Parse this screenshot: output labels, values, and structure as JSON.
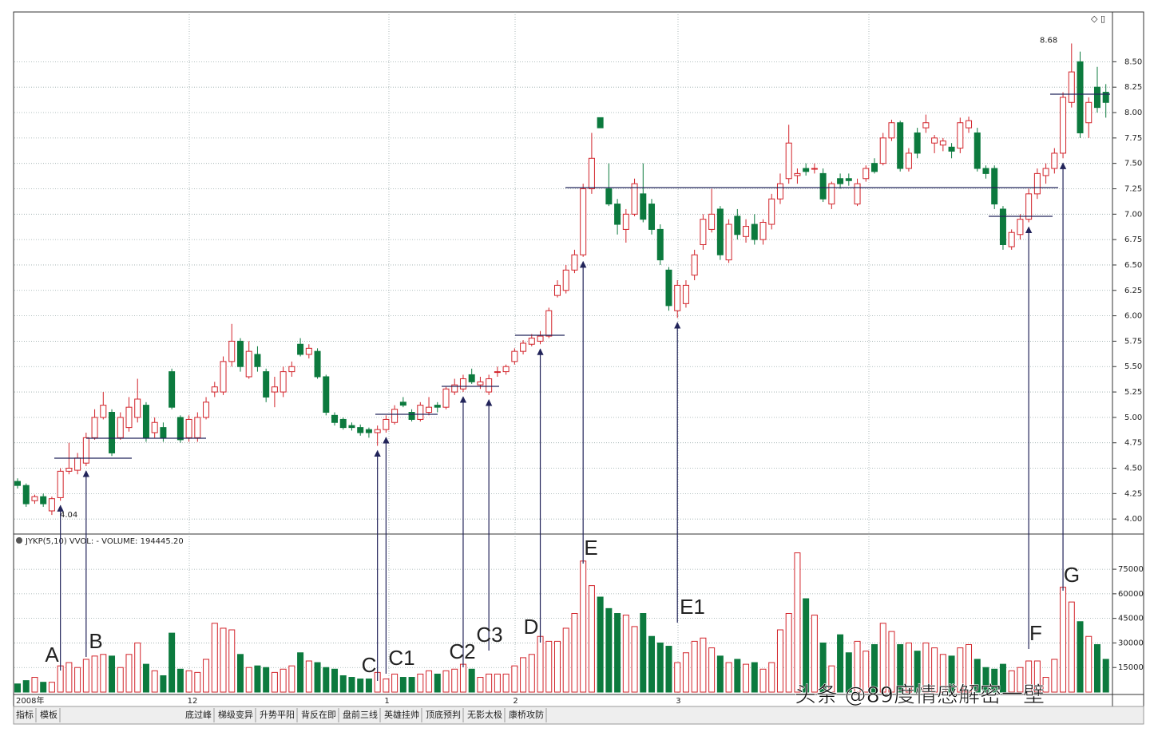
{
  "chart_data": {
    "type": "candlestick",
    "indicator_header": "JYKP(5,10) VVOL: -  VOLUME: 194445.20",
    "x_labels": [
      "2008年",
      "12",
      "1",
      "2",
      "3"
    ],
    "annotations": [
      "A",
      "B",
      "C",
      "C1",
      "C2",
      "C3",
      "D",
      "E",
      "E1",
      "F",
      "G"
    ],
    "up_color": "#d2232a",
    "down_color": "#0c7a3e",
    "ylim": [
      3.86,
      8.99
    ],
    "yticks": [
      {
        "value": 4,
        "label": "4.00"
      },
      4.25,
      {
        "value": 4.5,
        "label": "4.50"
      },
      4.75,
      {
        "value": 5,
        "label": "5.00"
      },
      5.25,
      {
        "value": 5.5,
        "label": "5.50"
      },
      5.75,
      {
        "value": 6,
        "label": "6.00"
      },
      6.25,
      {
        "value": 6.5,
        "label": "6.50"
      },
      6.75,
      {
        "value": 7,
        "label": "7.00"
      },
      7.25,
      {
        "value": 7.5,
        "label": "7.50"
      },
      7.75,
      {
        "value": 8,
        "label": "8.00"
      },
      8.25,
      {
        "value": 8.5,
        "label": "8.50"
      }
    ],
    "y2lim": [
      0,
      96000
    ],
    "y2ticks": [
      15000,
      30000,
      45000,
      60000,
      75000
    ],
    "ohlc": [
      [
        4.37,
        4.4,
        4.3,
        4.33
      ],
      [
        4.33,
        4.35,
        4.12,
        4.15
      ],
      [
        4.18,
        4.24,
        4.15,
        4.22
      ],
      [
        4.22,
        4.25,
        4.12,
        4.15
      ],
      [
        4.08,
        4.22,
        4.04,
        4.2
      ],
      [
        4.21,
        4.5,
        4.18,
        4.47
      ],
      [
        4.47,
        4.75,
        4.44,
        4.5
      ],
      [
        4.48,
        4.65,
        4.44,
        4.6
      ],
      [
        4.55,
        4.85,
        4.52,
        4.8
      ],
      [
        4.8,
        5.08,
        4.78,
        5.0
      ],
      [
        5.0,
        5.25,
        4.98,
        5.12
      ],
      [
        5.05,
        5.08,
        4.62,
        4.65
      ],
      [
        4.8,
        5.05,
        4.78,
        5.0
      ],
      [
        4.9,
        5.2,
        4.86,
        5.1
      ],
      [
        5.0,
        5.38,
        4.95,
        5.18
      ],
      [
        5.12,
        5.15,
        4.76,
        4.8
      ],
      [
        4.85,
        5.0,
        4.8,
        4.95
      ],
      [
        4.9,
        4.95,
        4.76,
        4.8
      ],
      [
        5.45,
        5.48,
        5.08,
        5.1
      ],
      [
        5.0,
        5.02,
        4.75,
        4.78
      ],
      [
        4.8,
        5.02,
        4.76,
        4.98
      ],
      [
        4.8,
        5.05,
        4.76,
        5.0
      ],
      [
        5.0,
        5.2,
        4.98,
        5.15
      ],
      [
        5.25,
        5.35,
        5.2,
        5.3
      ],
      [
        5.25,
        5.6,
        5.22,
        5.55
      ],
      [
        5.55,
        5.92,
        5.5,
        5.75
      ],
      [
        5.75,
        5.78,
        5.45,
        5.5
      ],
      [
        5.4,
        5.75,
        5.38,
        5.65
      ],
      [
        5.62,
        5.7,
        5.45,
        5.5
      ],
      [
        5.45,
        5.48,
        5.15,
        5.2
      ],
      [
        5.25,
        5.4,
        5.1,
        5.3
      ],
      [
        5.25,
        5.5,
        5.2,
        5.45
      ],
      [
        5.45,
        5.55,
        5.4,
        5.5
      ],
      [
        5.72,
        5.78,
        5.6,
        5.62
      ],
      [
        5.62,
        5.72,
        5.58,
        5.68
      ],
      [
        5.65,
        5.68,
        5.38,
        5.4
      ],
      [
        5.4,
        5.42,
        5.02,
        5.05
      ],
      [
        5.02,
        5.05,
        4.92,
        4.95
      ],
      [
        4.98,
        5.0,
        4.88,
        4.9
      ],
      [
        4.92,
        4.95,
        4.87,
        4.9
      ],
      [
        4.9,
        4.93,
        4.82,
        4.85
      ],
      [
        4.88,
        4.9,
        4.8,
        4.85
      ],
      [
        4.85,
        4.92,
        4.72,
        4.88
      ],
      [
        4.88,
        5.02,
        4.85,
        4.98
      ],
      [
        4.95,
        5.12,
        4.93,
        5.08
      ],
      [
        5.15,
        5.2,
        5.1,
        5.12
      ],
      [
        5.05,
        5.08,
        4.96,
        4.98
      ],
      [
        4.98,
        5.15,
        4.96,
        5.12
      ],
      [
        5.05,
        5.2,
        5.02,
        5.1
      ],
      [
        5.12,
        5.15,
        5.05,
        5.1
      ],
      [
        5.1,
        5.3,
        5.08,
        5.28
      ],
      [
        5.25,
        5.38,
        5.22,
        5.32
      ],
      [
        5.28,
        5.42,
        5.25,
        5.38
      ],
      [
        5.42,
        5.48,
        5.33,
        5.35
      ],
      [
        5.32,
        5.4,
        5.28,
        5.35
      ],
      [
        5.25,
        5.42,
        5.22,
        5.38
      ],
      [
        5.45,
        5.5,
        5.4,
        5.45
      ],
      [
        5.45,
        5.52,
        5.42,
        5.5
      ],
      [
        5.55,
        5.68,
        5.52,
        5.65
      ],
      [
        5.65,
        5.76,
        5.62,
        5.73
      ],
      [
        5.72,
        5.82,
        5.7,
        5.78
      ],
      [
        5.75,
        5.85,
        5.72,
        5.8
      ],
      [
        5.8,
        6.08,
        5.78,
        6.05
      ],
      [
        6.2,
        6.35,
        6.18,
        6.3
      ],
      [
        6.25,
        6.5,
        6.22,
        6.45
      ],
      [
        6.45,
        6.65,
        6.42,
        6.6
      ],
      [
        6.6,
        7.3,
        6.58,
        7.25
      ],
      [
        7.25,
        7.8,
        7.2,
        7.55
      ],
      [
        7.95,
        7.95,
        7.85,
        7.85
      ],
      [
        7.25,
        7.5,
        7.08,
        7.1
      ],
      [
        7.1,
        7.15,
        6.8,
        6.9
      ],
      [
        6.85,
        7.05,
        6.72,
        7.0
      ],
      [
        7.0,
        7.35,
        6.98,
        7.3
      ],
      [
        7.2,
        7.5,
        6.92,
        6.95
      ],
      [
        7.1,
        7.15,
        6.8,
        6.85
      ],
      [
        6.85,
        6.9,
        6.5,
        6.55
      ],
      [
        6.45,
        6.48,
        6.05,
        6.1
      ],
      [
        6.05,
        6.35,
        5.98,
        6.3
      ],
      [
        6.12,
        6.35,
        6.08,
        6.3
      ],
      [
        6.4,
        6.65,
        6.35,
        6.6
      ],
      [
        6.7,
        7.0,
        6.65,
        6.95
      ],
      [
        6.85,
        7.25,
        6.82,
        7.0
      ],
      [
        7.05,
        7.08,
        6.55,
        6.6
      ],
      [
        6.55,
        6.95,
        6.52,
        6.9
      ],
      [
        6.98,
        7.05,
        6.75,
        6.8
      ],
      [
        6.78,
        6.95,
        6.72,
        6.88
      ],
      [
        6.9,
        7.0,
        6.7,
        6.75
      ],
      [
        6.75,
        6.95,
        6.7,
        6.92
      ],
      [
        6.9,
        7.2,
        6.85,
        7.15
      ],
      [
        7.15,
        7.4,
        7.1,
        7.3
      ],
      [
        7.35,
        7.88,
        7.3,
        7.7
      ],
      [
        7.38,
        7.45,
        7.3,
        7.4
      ],
      [
        7.45,
        7.5,
        7.38,
        7.42
      ],
      [
        7.45,
        7.5,
        7.4,
        7.45
      ],
      [
        7.4,
        7.45,
        7.12,
        7.15
      ],
      [
        7.1,
        7.32,
        7.05,
        7.3
      ],
      [
        7.35,
        7.4,
        7.25,
        7.3
      ],
      [
        7.35,
        7.4,
        7.28,
        7.33
      ],
      [
        7.1,
        7.35,
        7.08,
        7.3
      ],
      [
        7.35,
        7.48,
        7.32,
        7.45
      ],
      [
        7.5,
        7.55,
        7.4,
        7.42
      ],
      [
        7.5,
        7.8,
        7.48,
        7.75
      ],
      [
        7.75,
        7.93,
        7.72,
        7.9
      ],
      [
        7.9,
        7.92,
        7.42,
        7.45
      ],
      [
        7.45,
        7.65,
        7.42,
        7.6
      ],
      [
        7.8,
        7.85,
        7.55,
        7.6
      ],
      [
        7.85,
        7.98,
        7.8,
        7.9
      ],
      [
        7.7,
        7.78,
        7.6,
        7.75
      ],
      [
        7.68,
        7.75,
        7.62,
        7.72
      ],
      [
        7.66,
        7.7,
        7.55,
        7.62
      ],
      [
        7.65,
        7.95,
        7.6,
        7.9
      ],
      [
        7.85,
        7.96,
        7.8,
        7.92
      ],
      [
        7.8,
        7.85,
        7.42,
        7.45
      ],
      [
        7.45,
        7.48,
        7.35,
        7.4
      ],
      [
        7.45,
        7.48,
        7.05,
        7.1
      ],
      [
        7.05,
        7.08,
        6.65,
        6.7
      ],
      [
        6.68,
        6.85,
        6.65,
        6.82
      ],
      [
        6.8,
        7.0,
        6.75,
        6.95
      ],
      [
        6.95,
        7.25,
        6.92,
        7.2
      ],
      [
        7.2,
        7.45,
        7.15,
        7.4
      ],
      [
        7.38,
        7.5,
        7.3,
        7.45
      ],
      [
        7.45,
        7.65,
        7.4,
        7.6
      ],
      [
        7.6,
        8.2,
        7.55,
        8.15
      ],
      [
        8.1,
        8.68,
        8.05,
        8.4
      ],
      [
        8.5,
        8.6,
        7.75,
        7.8
      ],
      [
        7.9,
        8.15,
        7.75,
        8.1
      ],
      [
        8.25,
        8.45,
        8.0,
        8.05
      ],
      [
        8.2,
        8.28,
        7.95,
        8.1
      ]
    ],
    "volume": [
      5000,
      7000,
      9000,
      6000,
      6000,
      16000,
      18000,
      15000,
      20000,
      22000,
      23000,
      22000,
      15000,
      23000,
      30000,
      17000,
      13000,
      10000,
      36000,
      14000,
      13000,
      12000,
      20000,
      42000,
      39000,
      38000,
      23000,
      15000,
      16000,
      15000,
      12000,
      14000,
      16000,
      24000,
      19000,
      18000,
      15000,
      14000,
      10000,
      9000,
      8000,
      8000,
      12000,
      8000,
      11000,
      9000,
      9000,
      11000,
      13000,
      11000,
      13000,
      14000,
      17000,
      14000,
      9000,
      11000,
      11000,
      11000,
      16000,
      21000,
      23000,
      34000,
      31000,
      31000,
      39000,
      48000,
      80000,
      65000,
      58000,
      51000,
      48000,
      47000,
      40000,
      48000,
      34000,
      30000,
      28000,
      18000,
      24000,
      31000,
      33000,
      27000,
      22000,
      18000,
      20000,
      17000,
      18000,
      14000,
      18000,
      38000,
      48000,
      85000,
      57000,
      47000,
      30000,
      16000,
      35000,
      24000,
      31000,
      25000,
      29000,
      42000,
      37000,
      29000,
      30000,
      25000,
      30000,
      27000,
      23000,
      22000,
      27000,
      29000,
      20000,
      15000,
      14000,
      17000,
      13000,
      15000,
      19000,
      19000,
      9000,
      20000,
      64000,
      55000,
      43000,
      34000,
      29000,
      20000
    ],
    "toolbar": [
      "指标",
      "模板",
      "底过峰",
      "梯级变异",
      "升势平阳",
      "背反在即",
      "盘前三线",
      "英雄挂帅",
      "顶底预判",
      "无影太极",
      "康桥攻防"
    ],
    "watermark": "头条 @89度情感解密一壁"
  }
}
